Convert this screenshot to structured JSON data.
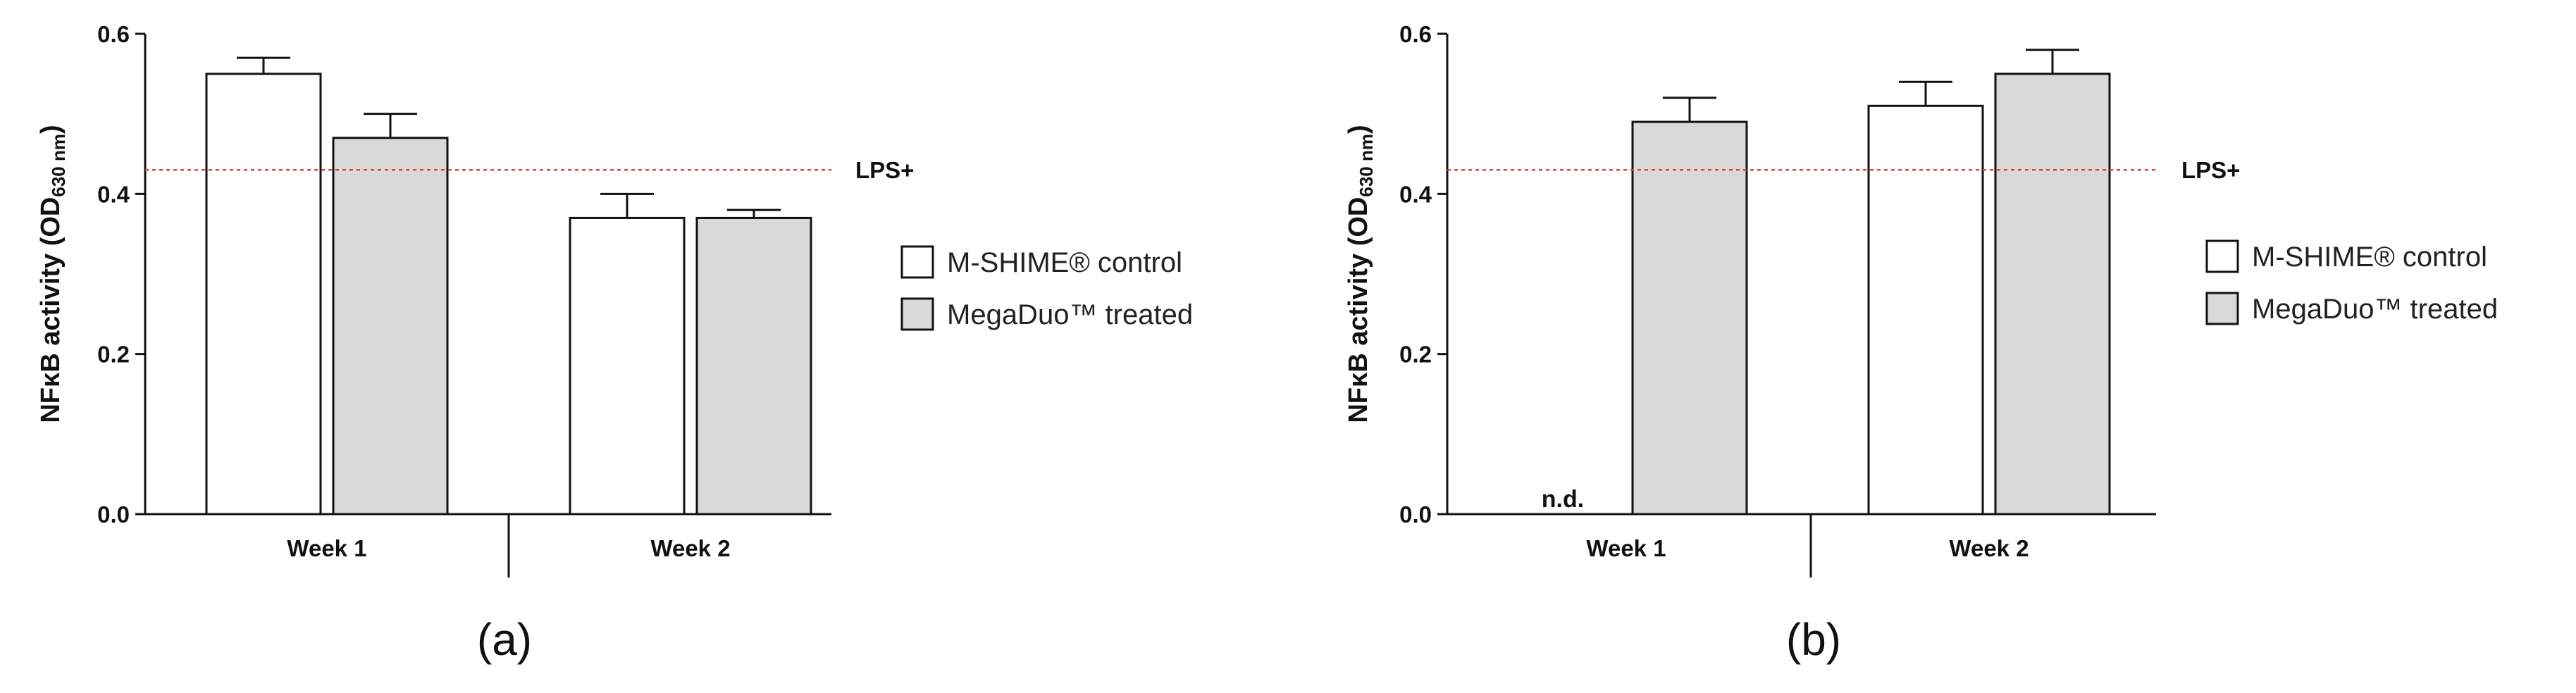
{
  "chart_data": [
    {
      "type": "bar",
      "panel_label": "(a)",
      "ylabel_main": "NFκB activity (OD",
      "ylabel_sub": "630 nm",
      "ylabel_close": ")",
      "ylim": [
        0,
        0.6
      ],
      "yticks": [
        "0.0",
        "0.2",
        "0.4",
        "0.6"
      ],
      "ytick_values": [
        0.0,
        0.2,
        0.4,
        0.6
      ],
      "categories": [
        "Week 1",
        "Week 2"
      ],
      "series": [
        {
          "name": "M-SHIME® control",
          "color": "#ffffff",
          "values": [
            0.55,
            0.37
          ],
          "errors": [
            0.02,
            0.03
          ]
        },
        {
          "name": "MegaDuo™ treated",
          "color": "#d9d9d9",
          "values": [
            0.47,
            0.37
          ],
          "errors": [
            0.03,
            0.01
          ]
        }
      ],
      "reference_line": {
        "label": "LPS+",
        "value": 0.43,
        "color": "#e8413c"
      },
      "annotations": []
    },
    {
      "type": "bar",
      "panel_label": "(b)",
      "ylabel_main": "NFκB activity (OD",
      "ylabel_sub": "630 nm",
      "ylabel_close": ")",
      "ylim": [
        0,
        0.6
      ],
      "yticks": [
        "0.0",
        "0.2",
        "0.4",
        "0.6"
      ],
      "ytick_values": [
        0.0,
        0.2,
        0.4,
        0.6
      ],
      "categories": [
        "Week 1",
        "Week 2"
      ],
      "series": [
        {
          "name": "M-SHIME® control",
          "color": "#ffffff",
          "values": [
            null,
            0.51
          ],
          "errors": [
            null,
            0.03
          ]
        },
        {
          "name": "MegaDuo™ treated",
          "color": "#d9d9d9",
          "values": [
            0.49,
            0.55
          ],
          "errors": [
            0.03,
            0.03
          ]
        }
      ],
      "reference_line": {
        "label": "LPS+",
        "value": 0.43,
        "color": "#e8413c"
      },
      "annotations": [
        {
          "text": "n.d.",
          "series": 0,
          "category": 0
        }
      ]
    }
  ]
}
